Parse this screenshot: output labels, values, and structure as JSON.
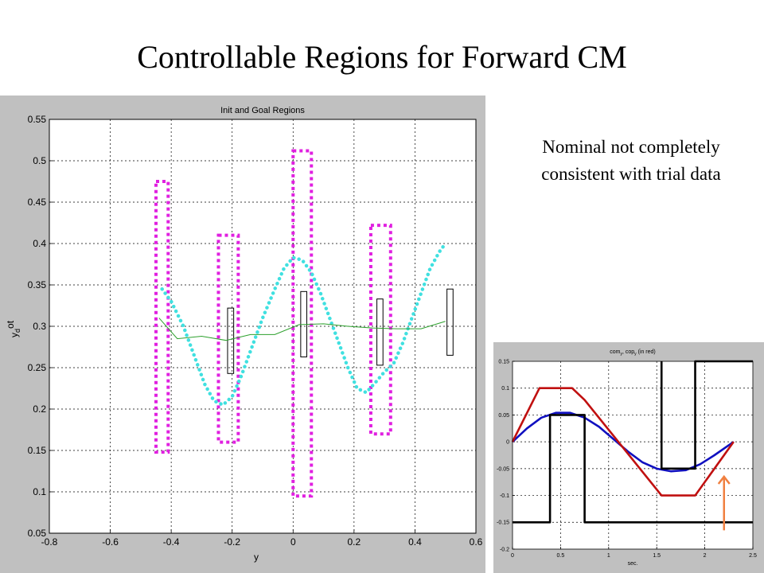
{
  "slide": {
    "title": "Controllable Regions for Forward CM",
    "note_line1": "Nominal not completely",
    "note_line2": "consistent  with trial data"
  },
  "chart_data": [
    {
      "type": "line",
      "title": "Init and Goal Regions",
      "xlabel": "y",
      "ylabel": "y_d^ot",
      "xlim": [
        -0.8,
        0.6
      ],
      "ylim": [
        0.05,
        0.55
      ],
      "xticks": [
        -0.8,
        -0.6,
        -0.4,
        -0.2,
        0,
        0.2,
        0.4,
        0.6
      ],
      "xtick_labels": [
        "-0.8",
        "-0.6",
        "-0.4",
        "-0.2",
        "0",
        "0.2",
        "0.4",
        "0.6"
      ],
      "yticks": [
        0.05,
        0.1,
        0.15,
        0.2,
        0.25,
        0.3,
        0.35,
        0.4,
        0.45,
        0.5,
        0.55
      ],
      "ytick_labels": [
        "0.05",
        "0.1",
        "0.15",
        "0.2",
        "0.25",
        "0.3",
        "0.35",
        "0.4",
        "0.45",
        "0.5",
        "0.55"
      ],
      "grid": true,
      "series": [
        {
          "color": "#40e0e0",
          "style": "dotted-thick",
          "points": [
            [
              -0.43,
              0.345
            ],
            [
              -0.4,
              0.33
            ],
            [
              -0.36,
              0.3
            ],
            [
              -0.32,
              0.26
            ],
            [
              -0.29,
              0.23
            ],
            [
              -0.26,
              0.21
            ],
            [
              -0.23,
              0.205
            ],
            [
              -0.2,
              0.215
            ],
            [
              -0.17,
              0.24
            ],
            [
              -0.14,
              0.27
            ],
            [
              -0.1,
              0.31
            ],
            [
              -0.06,
              0.345
            ],
            [
              -0.03,
              0.37
            ],
            [
              0.0,
              0.383
            ],
            [
              0.03,
              0.38
            ],
            [
              0.06,
              0.365
            ],
            [
              0.09,
              0.34
            ],
            [
              0.12,
              0.31
            ],
            [
              0.15,
              0.28
            ],
            [
              0.18,
              0.25
            ],
            [
              0.21,
              0.225
            ],
            [
              0.24,
              0.22
            ],
            [
              0.27,
              0.232
            ],
            [
              0.3,
              0.245
            ],
            [
              0.33,
              0.255
            ],
            [
              0.36,
              0.28
            ],
            [
              0.39,
              0.31
            ],
            [
              0.42,
              0.34
            ],
            [
              0.45,
              0.37
            ],
            [
              0.48,
              0.39
            ],
            [
              0.5,
              0.4
            ]
          ]
        },
        {
          "color": "#2ca02c",
          "style": "solid-thin",
          "points": [
            [
              -0.44,
              0.31
            ],
            [
              -0.38,
              0.285
            ],
            [
              -0.3,
              0.288
            ],
            [
              -0.22,
              0.283
            ],
            [
              -0.14,
              0.29
            ],
            [
              -0.06,
              0.29
            ],
            [
              0.02,
              0.302
            ],
            [
              0.1,
              0.303
            ],
            [
              0.18,
              0.3
            ],
            [
              0.26,
              0.298
            ],
            [
              0.34,
              0.297
            ],
            [
              0.42,
              0.297
            ],
            [
              0.5,
              0.306
            ]
          ]
        }
      ],
      "regions": [
        {
          "kind": "init",
          "color": "#e020e0",
          "x": [
            -0.45,
            -0.41
          ],
          "y": [
            0.148,
            0.475
          ]
        },
        {
          "kind": "init",
          "color": "#e020e0",
          "x": [
            -0.245,
            -0.18
          ],
          "y": [
            0.16,
            0.41
          ]
        },
        {
          "kind": "init",
          "color": "#e020e0",
          "x": [
            0.0,
            0.06
          ],
          "y": [
            0.095,
            0.512
          ]
        },
        {
          "kind": "init",
          "color": "#e020e0",
          "x": [
            0.255,
            0.32
          ],
          "y": [
            0.17,
            0.422
          ]
        },
        {
          "kind": "goal",
          "color": "#000000",
          "x": [
            -0.215,
            -0.195
          ],
          "y": [
            0.243,
            0.322
          ]
        },
        {
          "kind": "goal",
          "color": "#000000",
          "x": [
            0.025,
            0.045
          ],
          "y": [
            0.263,
            0.342
          ]
        },
        {
          "kind": "goal",
          "color": "#000000",
          "x": [
            0.275,
            0.295
          ],
          "y": [
            0.253,
            0.333
          ]
        },
        {
          "kind": "goal",
          "color": "#000000",
          "x": [
            0.505,
            0.525
          ],
          "y": [
            0.265,
            0.345
          ]
        }
      ]
    },
    {
      "type": "line",
      "title": "com_y, cop_y (in red)",
      "xlabel": "sec.",
      "ylabel": "",
      "xlim": [
        0,
        2.5
      ],
      "ylim": [
        -0.2,
        0.15
      ],
      "xticks": [
        0,
        0.5,
        1,
        1.5,
        2,
        2.5
      ],
      "xtick_labels": [
        "0",
        "0.5",
        "1",
        "1.5",
        "2",
        "2.5"
      ],
      "yticks": [
        -0.2,
        -0.15,
        -0.1,
        -0.05,
        0,
        0.05,
        0.1,
        0.15
      ],
      "ytick_labels": [
        "-0.2",
        "-0.15",
        "-0.1",
        "-0.05",
        "0",
        "0.05",
        "0.1",
        "0.15"
      ],
      "grid": true,
      "series": [
        {
          "color": "#1010c0",
          "points": [
            [
              0,
              0
            ],
            [
              0.15,
              0.025
            ],
            [
              0.3,
              0.045
            ],
            [
              0.45,
              0.054
            ],
            [
              0.6,
              0.054
            ],
            [
              0.75,
              0.045
            ],
            [
              0.9,
              0.028
            ],
            [
              1.05,
              0.005
            ],
            [
              1.2,
              -0.018
            ],
            [
              1.35,
              -0.038
            ],
            [
              1.5,
              -0.05
            ],
            [
              1.65,
              -0.055
            ],
            [
              1.8,
              -0.053
            ],
            [
              1.95,
              -0.042
            ],
            [
              2.1,
              -0.025
            ],
            [
              2.3,
              0
            ]
          ]
        },
        {
          "color": "#c01010",
          "points": [
            [
              0,
              0
            ],
            [
              0.28,
              0.1
            ],
            [
              0.62,
              0.1
            ],
            [
              0.75,
              0.078
            ],
            [
              1.55,
              -0.1
            ],
            [
              1.9,
              -0.1
            ],
            [
              2.3,
              0
            ]
          ]
        },
        {
          "color": "#000000",
          "points": [
            [
              0,
              -0.15
            ],
            [
              0.39,
              -0.15
            ],
            [
              0.39,
              0.05
            ],
            [
              0.75,
              0.05
            ],
            [
              0.75,
              -0.15
            ],
            [
              2.5,
              -0.15
            ]
          ]
        },
        {
          "color": "#000000",
          "points": [
            [
              1.55,
              0.15
            ],
            [
              1.55,
              -0.05
            ],
            [
              1.9,
              -0.05
            ],
            [
              1.9,
              0.15
            ],
            [
              2.5,
              0.15
            ]
          ]
        }
      ],
      "annotations": [
        {
          "kind": "arrow",
          "color": "#f08040",
          "from": [
            2.2,
            -0.165
          ],
          "to": [
            2.2,
            -0.065
          ]
        }
      ]
    }
  ]
}
